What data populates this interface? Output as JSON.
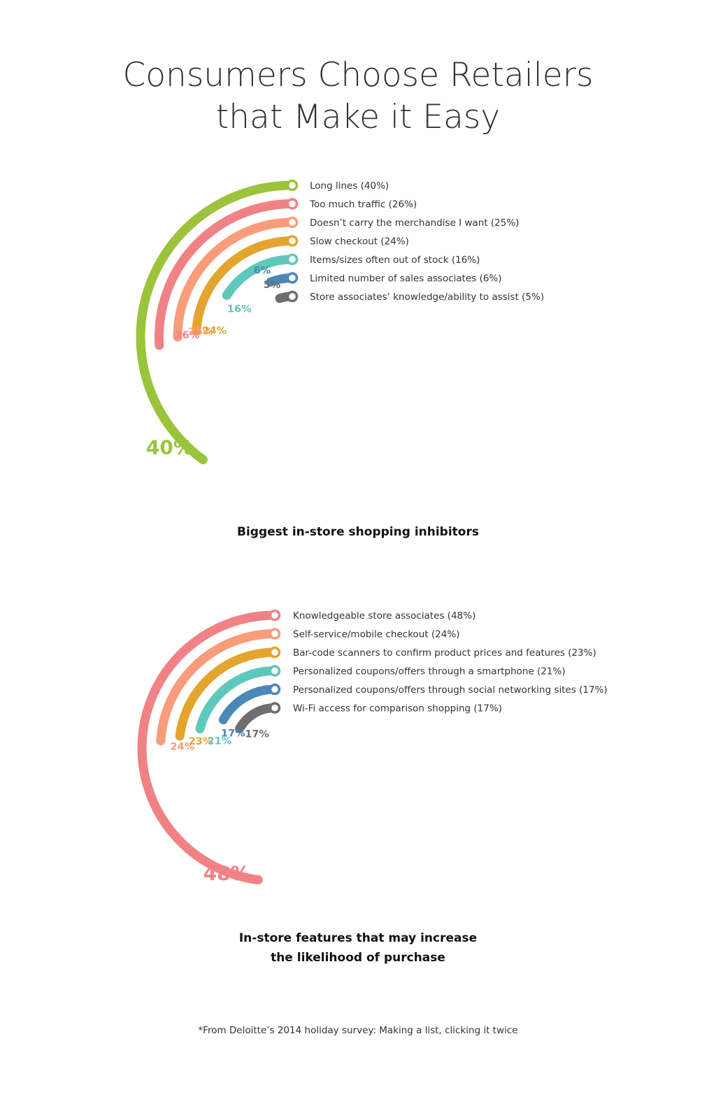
{
  "title": {
    "line1": "Consumers Choose Retailers",
    "line2": "that Make it Easy"
  },
  "chart_data": [
    {
      "type": "radial-bar",
      "title": "Biggest in-store shopping inhibitors",
      "unit": "%",
      "categories": [
        "Long lines (40%)",
        "Too much traffic (26%)",
        "Doesn’t carry the merchandise I want (25%)",
        "Slow checkout (24%)",
        "Items/sizes often out of stock (16%)",
        "Limited number of sales associates (6%)",
        "Store associates’ knowledge/ability to assist (5%)"
      ],
      "values": [
        40,
        26,
        25,
        24,
        16,
        6,
        5
      ],
      "value_labels": [
        "40%",
        "26%",
        "25%",
        "24%",
        "16%",
        "6%",
        "5%"
      ],
      "colors": [
        "#9bc33b",
        "#f08285",
        "#f89c7a",
        "#e3a52e",
        "#5ec8bb",
        "#4b87b8",
        "#6e6e6e"
      ],
      "legend_position": "top-right"
    },
    {
      "type": "radial-bar",
      "title_lines": [
        "In-store features that may increase",
        "the likelihood of purchase"
      ],
      "unit": "%",
      "categories": [
        "Knowledgeable store associates (48%)",
        "Self-service/mobile checkout (24%)",
        "Bar-code scanners to confirm product prices and features (23%)",
        "Personalized coupons/offers through a smartphone (21%)",
        "Personalized coupons/offers through social networking sites (17%)",
        "Wi-Fi access for comparison shopping (17%)"
      ],
      "values": [
        48,
        24,
        23,
        21,
        17,
        17
      ],
      "value_labels": [
        "48%",
        "24%",
        "23%",
        "21%",
        "17%",
        "17%"
      ],
      "colors": [
        "#f08285",
        "#f89c7a",
        "#e3a52e",
        "#5ec8bb",
        "#4b87b8",
        "#6e6e6e"
      ],
      "legend_position": "top-right"
    }
  ],
  "source_note": "*From Deloitte’s 2014 holiday survey: Making a list, clicking it twice"
}
